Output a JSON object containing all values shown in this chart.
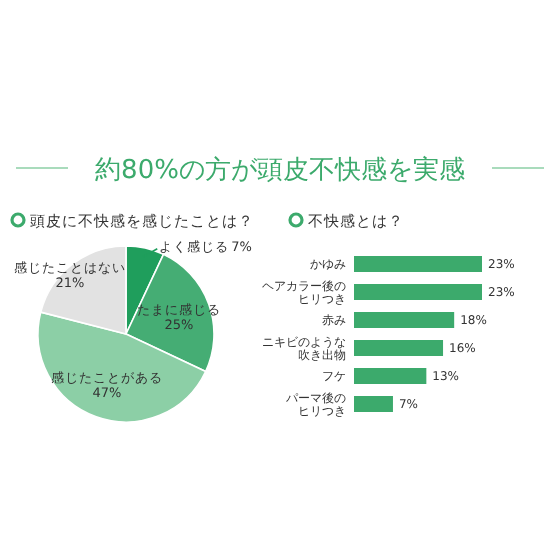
{
  "chart_data": [
    {
      "type": "pie",
      "title": "約80%の方が頭皮不快感を実感",
      "subtitle": "頭皮に不快感を感じたことは？",
      "categories": [
        "よく感じる",
        "たまに感じる",
        "感じたことがある",
        "感じたことはない"
      ],
      "values": [
        7,
        25,
        47,
        21
      ],
      "value_labels": [
        "7%",
        "25%",
        "47%",
        "21%"
      ],
      "colors": [
        "#1f9e5c",
        "#45ad74",
        "#8ccfa6",
        "#e2e2e2"
      ]
    },
    {
      "type": "bar",
      "orientation": "horizontal",
      "subtitle": "不快感とは？",
      "categories": [
        "かゆみ",
        "ヘアカラー後のヒリつき",
        "赤み",
        "ニキビのような吹き出物",
        "フケ",
        "パーマ後のヒリつき"
      ],
      "values": [
        23,
        23,
        18,
        16,
        13,
        7
      ],
      "value_labels": [
        "23%",
        "23%",
        "18%",
        "16%",
        "13%",
        "7%"
      ],
      "color": "#3caa6c"
    }
  ]
}
